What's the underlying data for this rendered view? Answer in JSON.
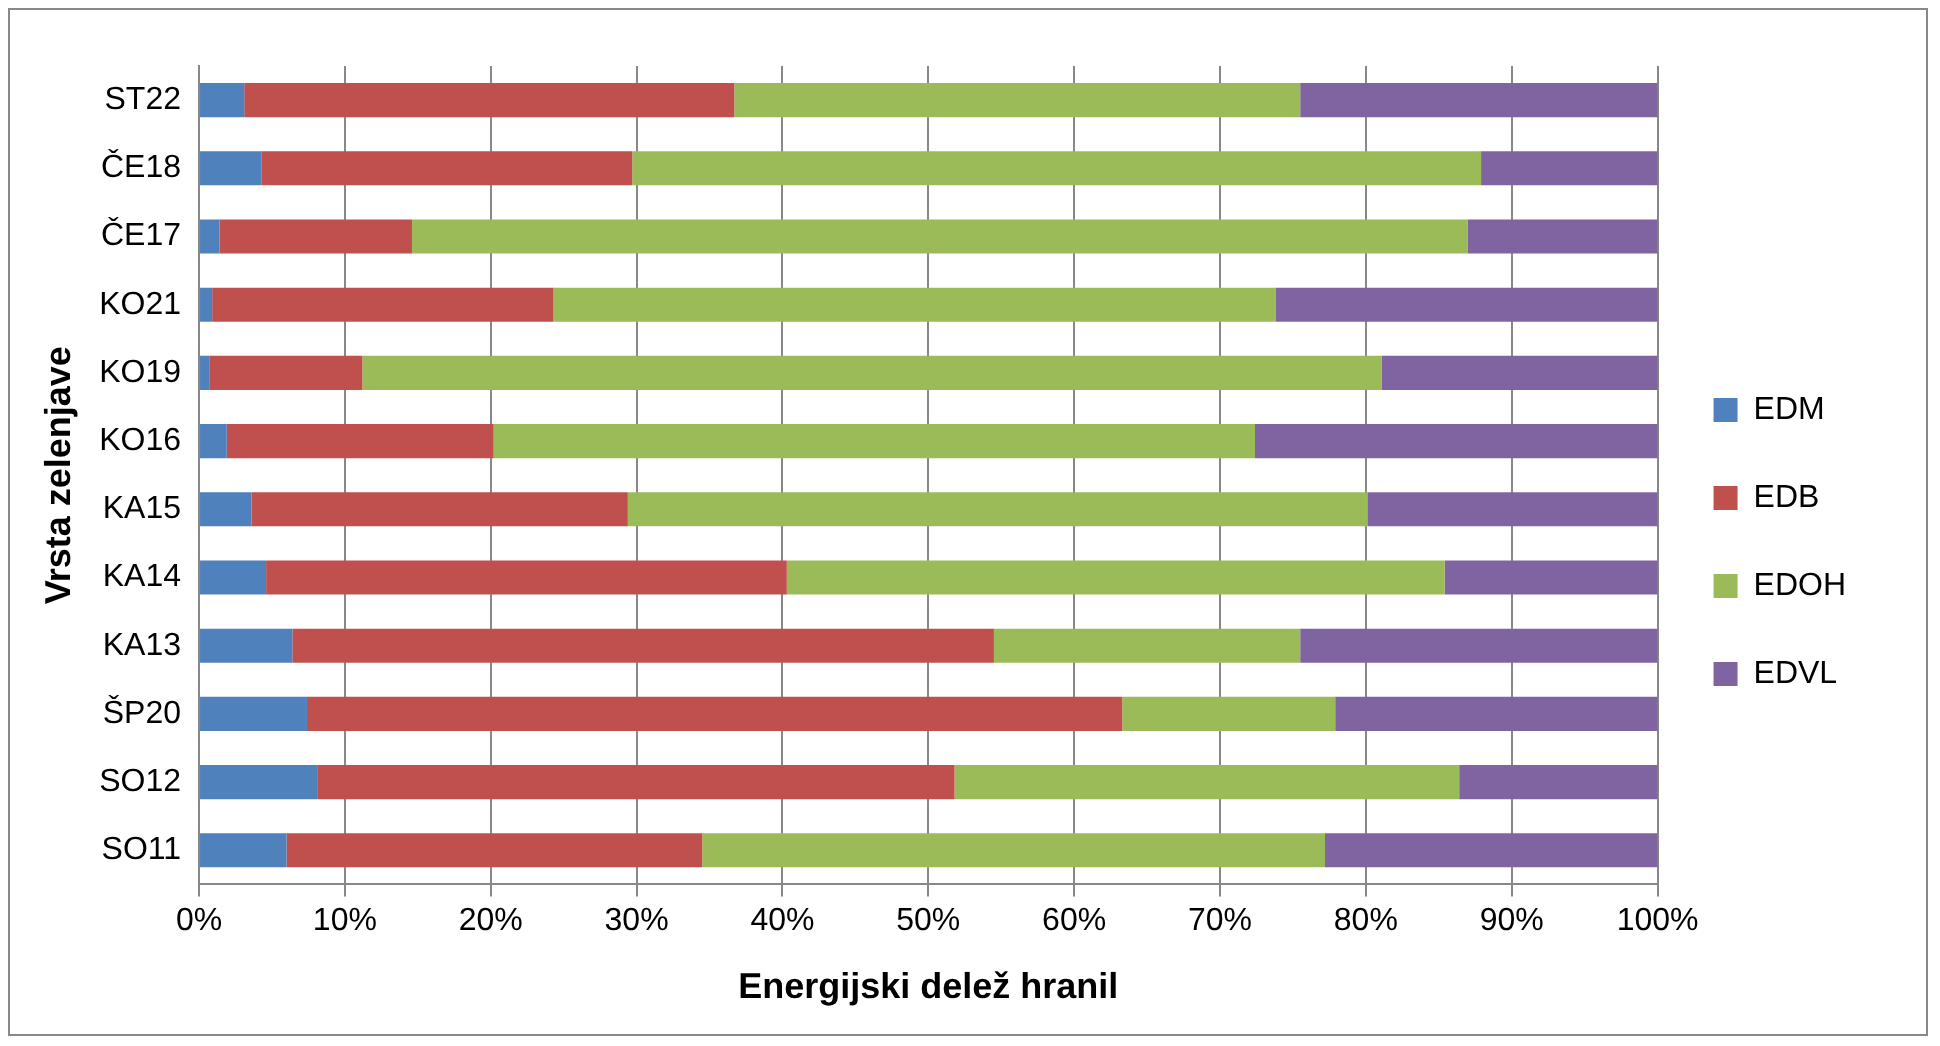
{
  "chart_data": {
    "type": "bar",
    "orientation": "horizontal",
    "stacked": true,
    "xlabel": "Energijski delež hranil",
    "ylabel": "Vrsta zelenjave",
    "categories": [
      "ST22",
      "ČE18",
      "ČE17",
      "KO21",
      "KO19",
      "KO16",
      "KA15",
      "KA14",
      "KA13",
      "ŠP20",
      "SO12",
      "SO11"
    ],
    "series": [
      {
        "name": "EDM",
        "color": "#4f81bd",
        "values": [
          3.1,
          4.3,
          1.4,
          0.9,
          0.7,
          1.9,
          3.6,
          4.6,
          6.4,
          7.4,
          8.1,
          6.0
        ]
      },
      {
        "name": "EDB",
        "color": "#c0504d",
        "values": [
          33.6,
          25.4,
          13.2,
          23.4,
          10.5,
          18.3,
          25.8,
          35.7,
          48.1,
          55.9,
          43.7,
          28.5
        ]
      },
      {
        "name": "EDOH",
        "color": "#9bbb59",
        "values": [
          38.8,
          58.2,
          72.4,
          49.5,
          69.9,
          52.2,
          50.7,
          45.1,
          21.0,
          14.6,
          34.6,
          42.7
        ]
      },
      {
        "name": "EDVL",
        "color": "#8064a2",
        "values": [
          24.5,
          12.1,
          13.0,
          26.2,
          18.9,
          27.6,
          19.9,
          14.6,
          24.5,
          22.1,
          13.6,
          22.8
        ]
      }
    ],
    "xlim": [
      0,
      100
    ],
    "xticks": [
      {
        "value": 0,
        "label": "0%"
      },
      {
        "value": 10,
        "label": "10%"
      },
      {
        "value": 20,
        "label": "20%"
      },
      {
        "value": 30,
        "label": "30%"
      },
      {
        "value": 40,
        "label": "40%"
      },
      {
        "value": 50,
        "label": "50%"
      },
      {
        "value": 60,
        "label": "60%"
      },
      {
        "value": 70,
        "label": "70%"
      },
      {
        "value": 80,
        "label": "80%"
      },
      {
        "value": 90,
        "label": "90%"
      },
      {
        "value": 100,
        "label": "100%"
      }
    ],
    "grid": "x",
    "legend": "right"
  }
}
